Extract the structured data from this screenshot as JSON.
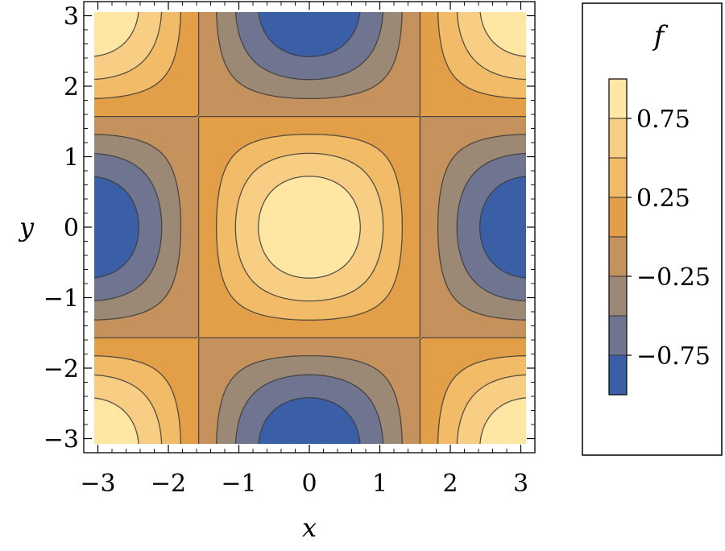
{
  "chart_data": {
    "type": "heatmap",
    "subtype": "contour",
    "function_label": "f",
    "xlabel": "x",
    "ylabel": "y",
    "xlim": [
      -3.2,
      3.2
    ],
    "ylim": [
      -3.2,
      3.2
    ],
    "x_ticks": [
      {
        "value": -3,
        "label": "−3"
      },
      {
        "value": -2,
        "label": "−2"
      },
      {
        "value": -1,
        "label": "−1"
      },
      {
        "value": 0,
        "label": "0"
      },
      {
        "value": 1,
        "label": "1"
      },
      {
        "value": 2,
        "label": "2"
      },
      {
        "value": 3,
        "label": "3"
      }
    ],
    "y_ticks": [
      {
        "value": -3,
        "label": "−3"
      },
      {
        "value": -2,
        "label": "−2"
      },
      {
        "value": -1,
        "label": "−1"
      },
      {
        "value": 0,
        "label": "0"
      },
      {
        "value": 1,
        "label": "1"
      },
      {
        "value": 2,
        "label": "2"
      },
      {
        "value": 3,
        "label": "3"
      }
    ],
    "grid": false,
    "legend": {
      "placement": "right",
      "title": "f",
      "ticks": [
        {
          "value": 0.75,
          "label": "0.75"
        },
        {
          "value": 0.25,
          "label": "0.25"
        },
        {
          "value": -0.25,
          "label": "−0.25"
        },
        {
          "value": -0.75,
          "label": "−0.75"
        }
      ]
    },
    "levels": [
      -1.0,
      -0.75,
      -0.5,
      -0.25,
      0.0,
      0.25,
      0.5,
      0.75,
      1.0
    ],
    "band_colors": [
      "#3b5fa6",
      "#6f7590",
      "#9c8975",
      "#c5915c",
      "#e39e48",
      "#f1bb67",
      "#f8cd84",
      "#ffe6a3"
    ],
    "contour_line_color": "#3a3a3a",
    "frame_color": "#000000",
    "field_values": [
      [
        1.0,
        0.75,
        0.25,
        -0.25,
        -0.75,
        -1.0,
        -0.75,
        -0.25,
        0.25,
        0.75,
        1.0,
        0.75,
        0.25,
        -0.25,
        -0.75,
        -1.0,
        -0.75,
        -0.25,
        0.25,
        0.75,
        1.0
      ],
      [
        0.7,
        0.6,
        0.4,
        0.1,
        -0.35,
        -0.6,
        -0.35,
        0.1,
        0.4,
        0.6,
        0.7,
        0.6,
        0.4,
        0.1,
        -0.35,
        -0.6,
        -0.35,
        0.1,
        0.4,
        0.6,
        0.7
      ]
    ]
  }
}
